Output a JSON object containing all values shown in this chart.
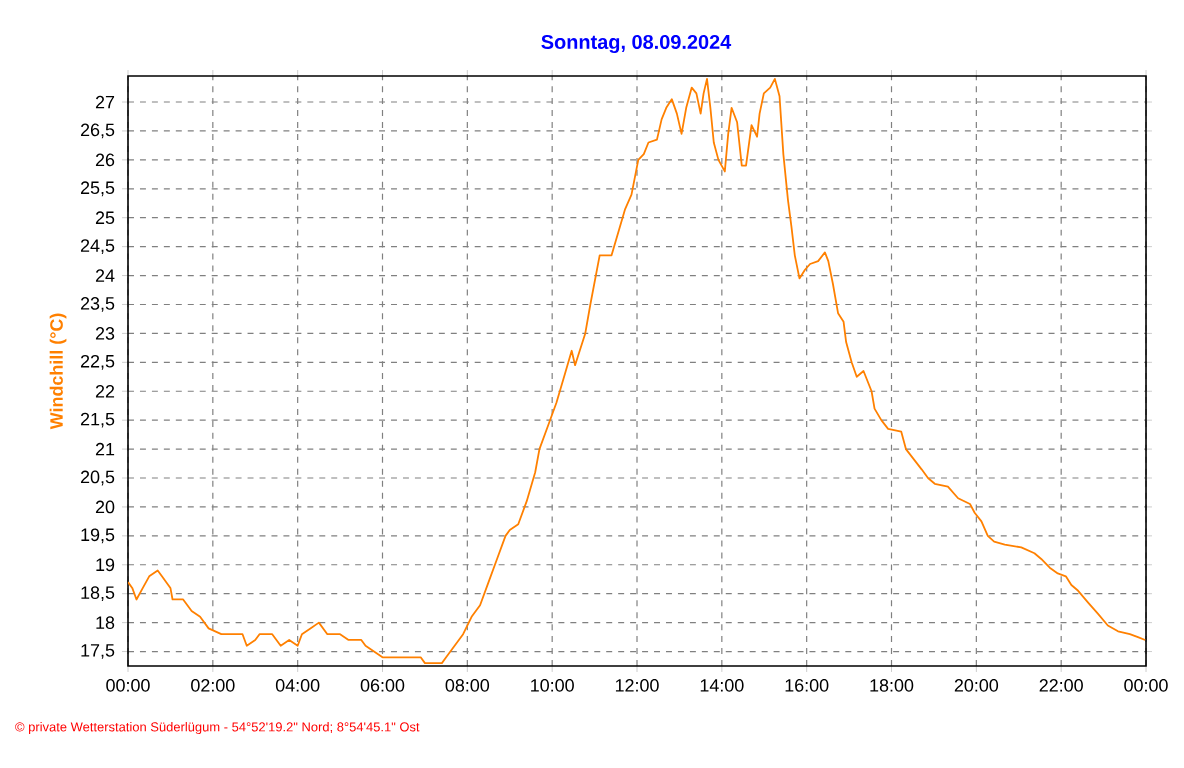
{
  "chart_data": {
    "type": "line",
    "title": "Sonntag, 08.09.2024",
    "ylabel": "Windchill (°C)",
    "annotations": [
      "© private Wetterstation Süderlügum - 54°52'19.2\" Nord; 8°54'45.1\" Ost"
    ],
    "xlim": [
      0,
      24
    ],
    "xticks": [
      {
        "value": 0,
        "label": "00:00"
      },
      {
        "value": 2,
        "label": "02:00"
      },
      {
        "value": 4,
        "label": "04:00"
      },
      {
        "value": 6,
        "label": "06:00"
      },
      {
        "value": 8,
        "label": "08:00"
      },
      {
        "value": 10,
        "label": "10:00"
      },
      {
        "value": 12,
        "label": "12:00"
      },
      {
        "value": 14,
        "label": "14:00"
      },
      {
        "value": 16,
        "label": "16:00"
      },
      {
        "value": 18,
        "label": "18:00"
      },
      {
        "value": 20,
        "label": "20:00"
      },
      {
        "value": 22,
        "label": "22:00"
      },
      {
        "value": 24,
        "label": "00:00"
      }
    ],
    "ylim": [
      17.25,
      27.45
    ],
    "yticks": [
      {
        "value": 17.5,
        "label": "17,5"
      },
      18,
      {
        "value": 18.5,
        "label": "18,5"
      },
      19,
      {
        "value": 19.5,
        "label": "19,5"
      },
      20,
      {
        "value": 20.5,
        "label": "20,5"
      },
      21,
      {
        "value": 21.5,
        "label": "21,5"
      },
      22,
      {
        "value": 22.5,
        "label": "22,5"
      },
      23,
      {
        "value": 23.5,
        "label": "23,5"
      },
      24,
      {
        "value": 24.5,
        "label": "24,5"
      },
      25,
      {
        "value": 25.5,
        "label": "25,5"
      },
      26,
      {
        "value": 26.5,
        "label": "26,5"
      },
      27
    ],
    "grid": true,
    "series": [
      {
        "color": "#ff8000",
        "x": [
          0.0,
          0.1,
          0.2,
          0.35,
          0.5,
          0.7,
          0.8,
          1.0,
          1.05,
          1.3,
          1.5,
          1.7,
          1.9,
          2.2,
          2.7,
          2.8,
          3.0,
          3.1,
          3.4,
          3.5,
          3.6,
          3.8,
          4.0,
          4.1,
          4.3,
          4.5,
          4.7,
          5.0,
          5.2,
          5.5,
          5.6,
          5.8,
          6.0,
          6.5,
          6.9,
          7.0,
          7.4,
          7.5,
          7.7,
          7.9,
          8.1,
          8.3,
          8.5,
          8.7,
          8.9,
          9.0,
          9.2,
          9.4,
          9.6,
          9.7,
          9.9,
          10.1,
          10.3,
          10.46,
          10.54,
          10.78,
          10.9,
          11.12,
          11.4,
          11.56,
          11.72,
          11.87,
          12.03,
          12.16,
          12.27,
          12.47,
          12.58,
          12.69,
          12.82,
          12.94,
          13.05,
          13.16,
          13.29,
          13.4,
          13.5,
          13.57,
          13.65,
          13.73,
          13.81,
          13.92,
          14.07,
          14.15,
          14.23,
          14.36,
          14.47,
          14.57,
          14.7,
          14.83,
          14.89,
          14.99,
          15.14,
          15.25,
          15.36,
          15.45,
          15.56,
          15.64,
          15.72,
          15.83,
          15.96,
          16.08,
          16.27,
          16.43,
          16.51,
          16.62,
          16.74,
          16.87,
          16.93,
          17.06,
          17.18,
          17.34,
          17.53,
          17.6,
          17.76,
          17.92,
          18.23,
          18.34,
          18.55,
          18.71,
          18.86,
          19.02,
          19.33,
          19.57,
          19.85,
          19.96,
          20.12,
          20.27,
          20.42,
          20.67,
          21.06,
          21.37,
          21.53,
          21.73,
          21.92,
          22.11,
          22.24,
          22.4,
          22.63,
          22.87,
          23.1,
          23.34,
          23.62,
          23.81,
          23.98
        ],
        "values": [
          18.7,
          18.6,
          18.4,
          18.6,
          18.8,
          18.9,
          18.8,
          18.6,
          18.4,
          18.4,
          18.2,
          18.1,
          17.9,
          17.8,
          17.8,
          17.6,
          17.7,
          17.8,
          17.8,
          17.7,
          17.6,
          17.7,
          17.6,
          17.8,
          17.9,
          18.0,
          17.8,
          17.8,
          17.7,
          17.7,
          17.6,
          17.5,
          17.4,
          17.4,
          17.4,
          17.3,
          17.3,
          17.4,
          17.6,
          17.8,
          18.1,
          18.3,
          18.7,
          19.1,
          19.5,
          19.6,
          19.7,
          20.1,
          20.6,
          21.0,
          21.4,
          21.8,
          22.3,
          22.7,
          22.45,
          23.0,
          23.5,
          24.35,
          24.35,
          24.75,
          25.15,
          25.4,
          26.0,
          26.1,
          26.3,
          26.35,
          26.7,
          26.9,
          27.05,
          26.8,
          26.45,
          26.9,
          27.25,
          27.15,
          26.8,
          27.15,
          27.4,
          26.9,
          26.3,
          26.0,
          25.8,
          26.45,
          26.9,
          26.65,
          25.9,
          25.9,
          26.6,
          26.4,
          26.8,
          27.15,
          27.25,
          27.4,
          27.1,
          26.1,
          25.3,
          24.85,
          24.35,
          23.95,
          24.1,
          24.2,
          24.25,
          24.4,
          24.25,
          23.85,
          23.35,
          23.2,
          22.85,
          22.5,
          22.25,
          22.35,
          22.0,
          21.7,
          21.5,
          21.35,
          21.3,
          21.0,
          20.8,
          20.65,
          20.5,
          20.4,
          20.35,
          20.15,
          20.05,
          19.9,
          19.75,
          19.5,
          19.4,
          19.35,
          19.3,
          19.2,
          19.1,
          18.95,
          18.85,
          18.8,
          18.65,
          18.55,
          18.35,
          18.15,
          17.95,
          17.85,
          17.8,
          17.75,
          17.7
        ]
      }
    ]
  }
}
